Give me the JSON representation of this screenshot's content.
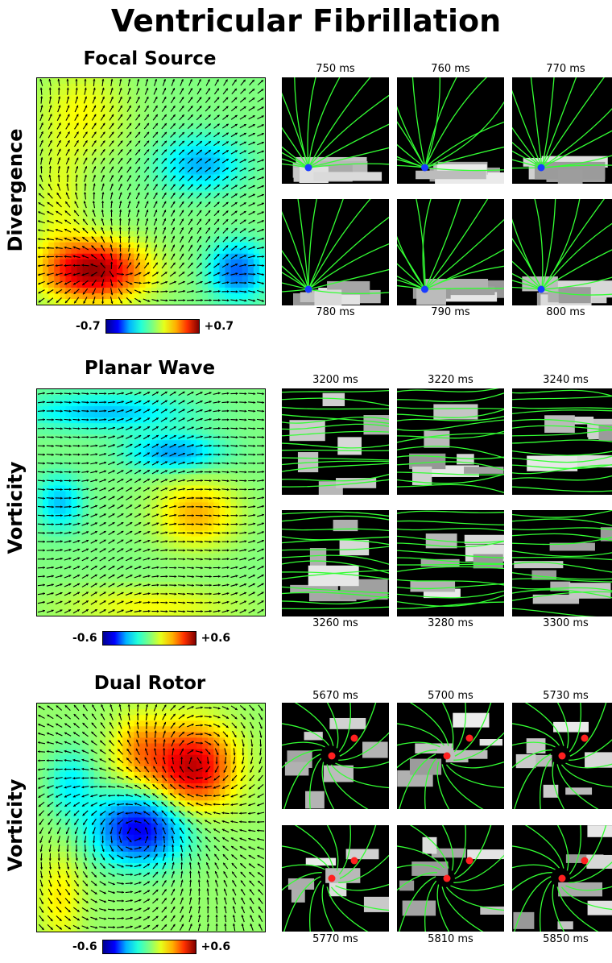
{
  "title": "Ventricular Fibrillation",
  "panels": [
    {
      "name": "Focal Source",
      "field_label": "Divergence",
      "colorbar": {
        "min": "-0.7",
        "max": "+0.7"
      },
      "pattern": "source",
      "frames_top": [
        "750 ms",
        "760 ms",
        "770 ms"
      ],
      "frames_bottom": [
        "780 ms",
        "790 ms",
        "800 ms"
      ],
      "marker_color": "#1a3cff"
    },
    {
      "name": "Planar Wave",
      "field_label": "Vorticity",
      "colorbar": {
        "min": "-0.6",
        "max": "+0.6"
      },
      "pattern": "planar",
      "frames_top": [
        "3200 ms",
        "3220 ms",
        "3240 ms"
      ],
      "frames_bottom": [
        "3260 ms",
        "3280 ms",
        "3300 ms"
      ],
      "marker_color": ""
    },
    {
      "name": "Dual Rotor",
      "field_label": "Vorticity",
      "colorbar": {
        "min": "-0.6",
        "max": "+0.6"
      },
      "pattern": "rotor",
      "frames_top": [
        "5670 ms",
        "5700 ms",
        "5730 ms"
      ],
      "frames_bottom": [
        "5770 ms",
        "5810 ms",
        "5850 ms"
      ],
      "marker_color": "#ff2020"
    }
  ],
  "colors": {
    "streamline": "#33ff33",
    "arrow": "#000000",
    "frame_bg": "#000000"
  }
}
